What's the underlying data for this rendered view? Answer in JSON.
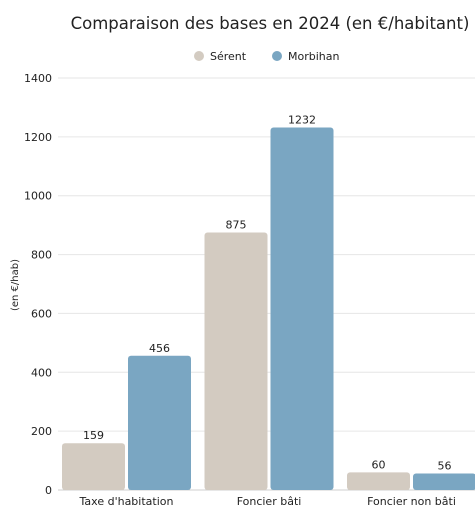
{
  "chart_data": {
    "type": "bar",
    "title": "Comparaison des bases en 2024 (en €/habitant)",
    "ylabel": "(en €/hab)",
    "xlabel": "",
    "categories": [
      "Taxe d'habitation",
      "Foncier bâti",
      "Foncier non bâti"
    ],
    "series": [
      {
        "name": "Sérent",
        "values": [
          159,
          875,
          60
        ],
        "color": "#d3cbc1"
      },
      {
        "name": "Morbihan",
        "values": [
          456,
          1232,
          56
        ],
        "color": "#7aa6c2"
      }
    ],
    "ylim": [
      0,
      1400
    ],
    "yticks": [
      0,
      200,
      400,
      600,
      800,
      1000,
      1200,
      1400
    ],
    "grid": true,
    "legend": "top-center",
    "data_labels": true
  }
}
